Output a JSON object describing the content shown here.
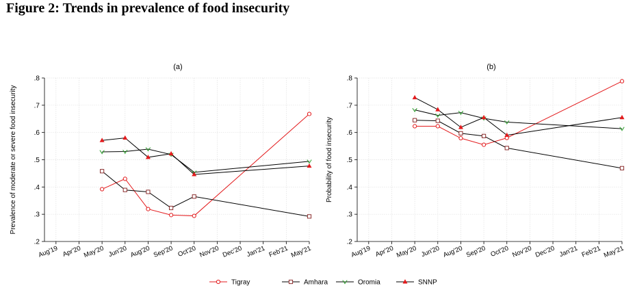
{
  "figure_title": "Figure 2: Trends in prevalence of food insecurity",
  "chart_data": [
    {
      "type": "line",
      "panel_label": "(a)",
      "title": "(a)",
      "xlabel": "",
      "ylabel": "Prevalence of moderate or severe food insecurity",
      "x_tick_labels": [
        "Aug'19",
        "Apr'20",
        "May'20",
        "Jun'20",
        "Aug'20",
        "Sep'20",
        "Oct'20",
        "Nov'20",
        "Dec'20",
        "Jan'21",
        "Feb'21",
        "May'21"
      ],
      "ylim": [
        0.2,
        0.8
      ],
      "y_ticks": [
        0.2,
        0.3,
        0.4,
        0.5,
        0.6,
        0.7,
        0.8
      ],
      "y_tick_labels": [
        ".2",
        ".3",
        ".4",
        ".5",
        ".6",
        ".7",
        ".8"
      ],
      "grid": true,
      "series": [
        {
          "name": "Tigray",
          "color": "#e31a1c",
          "marker": "circle",
          "points": [
            {
              "x": "May'20",
              "y": 0.392
            },
            {
              "x": "Jun'20",
              "y": 0.43
            },
            {
              "x": "Aug'20",
              "y": 0.319
            },
            {
              "x": "Sep'20",
              "y": 0.297
            },
            {
              "x": "Oct'20",
              "y": 0.294
            },
            {
              "x": "May'21",
              "y": 0.668
            }
          ]
        },
        {
          "name": "Amhara",
          "color": "#000000",
          "marker": "square",
          "points": [
            {
              "x": "May'20",
              "y": 0.458
            },
            {
              "x": "Jun'20",
              "y": 0.389
            },
            {
              "x": "Aug'20",
              "y": 0.382
            },
            {
              "x": "Sep'20",
              "y": 0.323
            },
            {
              "x": "Oct'20",
              "y": 0.365
            },
            {
              "x": "May'21",
              "y": 0.292
            }
          ]
        },
        {
          "name": "Oromia",
          "color": "#000000",
          "marker": "diamond",
          "points": [
            {
              "x": "May'20",
              "y": 0.529
            },
            {
              "x": "Jun'20",
              "y": 0.53
            },
            {
              "x": "Aug'20",
              "y": 0.539
            },
            {
              "x": "Sep'20",
              "y": 0.519
            },
            {
              "x": "Oct'20",
              "y": 0.454
            },
            {
              "x": "May'21",
              "y": 0.494
            }
          ]
        },
        {
          "name": "SNNP",
          "color": "#000000",
          "marker": "triangle",
          "points": [
            {
              "x": "May'20",
              "y": 0.571
            },
            {
              "x": "Jun'20",
              "y": 0.58
            },
            {
              "x": "Aug'20",
              "y": 0.509
            },
            {
              "x": "Sep'20",
              "y": 0.522
            },
            {
              "x": "Oct'20",
              "y": 0.446
            },
            {
              "x": "May'21",
              "y": 0.477
            }
          ]
        }
      ]
    },
    {
      "type": "line",
      "panel_label": "(b)",
      "title": "(b)",
      "xlabel": "",
      "ylabel": "Probability of food insecurity",
      "x_tick_labels": [
        "Aug'19",
        "Apr'20",
        "May'20",
        "Jun'20",
        "Aug'20",
        "Sep'20",
        "Oct'20",
        "Nov'20",
        "Dec'20",
        "Jan'21",
        "Feb'21",
        "May'21"
      ],
      "ylim": [
        0.2,
        0.8
      ],
      "y_ticks": [
        0.2,
        0.3,
        0.4,
        0.5,
        0.6,
        0.7,
        0.8
      ],
      "y_tick_labels": [
        ".2",
        ".3",
        ".4",
        ".5",
        ".6",
        ".7",
        ".8"
      ],
      "grid": true,
      "series": [
        {
          "name": "Tigray",
          "color": "#e31a1c",
          "marker": "circle",
          "points": [
            {
              "x": "May'20",
              "y": 0.623
            },
            {
              "x": "Jun'20",
              "y": 0.623
            },
            {
              "x": "Aug'20",
              "y": 0.579
            },
            {
              "x": "Sep'20",
              "y": 0.555
            },
            {
              "x": "Oct'20",
              "y": 0.58
            },
            {
              "x": "May'21",
              "y": 0.788
            }
          ]
        },
        {
          "name": "Amhara",
          "color": "#000000",
          "marker": "square",
          "points": [
            {
              "x": "May'20",
              "y": 0.645
            },
            {
              "x": "Jun'20",
              "y": 0.643
            },
            {
              "x": "Aug'20",
              "y": 0.597
            },
            {
              "x": "Sep'20",
              "y": 0.587
            },
            {
              "x": "Oct'20",
              "y": 0.543
            },
            {
              "x": "May'21",
              "y": 0.469
            }
          ]
        },
        {
          "name": "Oromia",
          "color": "#000000",
          "marker": "diamond",
          "points": [
            {
              "x": "May'20",
              "y": 0.683
            },
            {
              "x": "Jun'20",
              "y": 0.663
            },
            {
              "x": "Aug'20",
              "y": 0.673
            },
            {
              "x": "Sep'20",
              "y": 0.652
            },
            {
              "x": "Oct'20",
              "y": 0.638
            },
            {
              "x": "May'21",
              "y": 0.614
            }
          ]
        },
        {
          "name": "SNNP",
          "color": "#000000",
          "marker": "triangle",
          "points": [
            {
              "x": "May'20",
              "y": 0.728
            },
            {
              "x": "Jun'20",
              "y": 0.684
            },
            {
              "x": "Aug'20",
              "y": 0.619
            },
            {
              "x": "Sep'20",
              "y": 0.655
            },
            {
              "x": "Oct'20",
              "y": 0.59
            },
            {
              "x": "May'21",
              "y": 0.655
            }
          ]
        }
      ]
    }
  ],
  "legend": {
    "position": "bottom-center",
    "entries": [
      {
        "name": "Tigray",
        "color": "#e31a1c",
        "marker": "circle"
      },
      {
        "name": "Amhara",
        "color": "#000000",
        "marker": "square"
      },
      {
        "name": "Oromia",
        "color": "#000000",
        "marker": "diamond"
      },
      {
        "name": "SNNP",
        "color": "#000000",
        "marker": "triangle"
      }
    ]
  },
  "colors": {
    "marker_red": "#e31a1c",
    "marker_green": "#2ca02c",
    "axis": "#000000",
    "grid": "#e0e0e0"
  }
}
